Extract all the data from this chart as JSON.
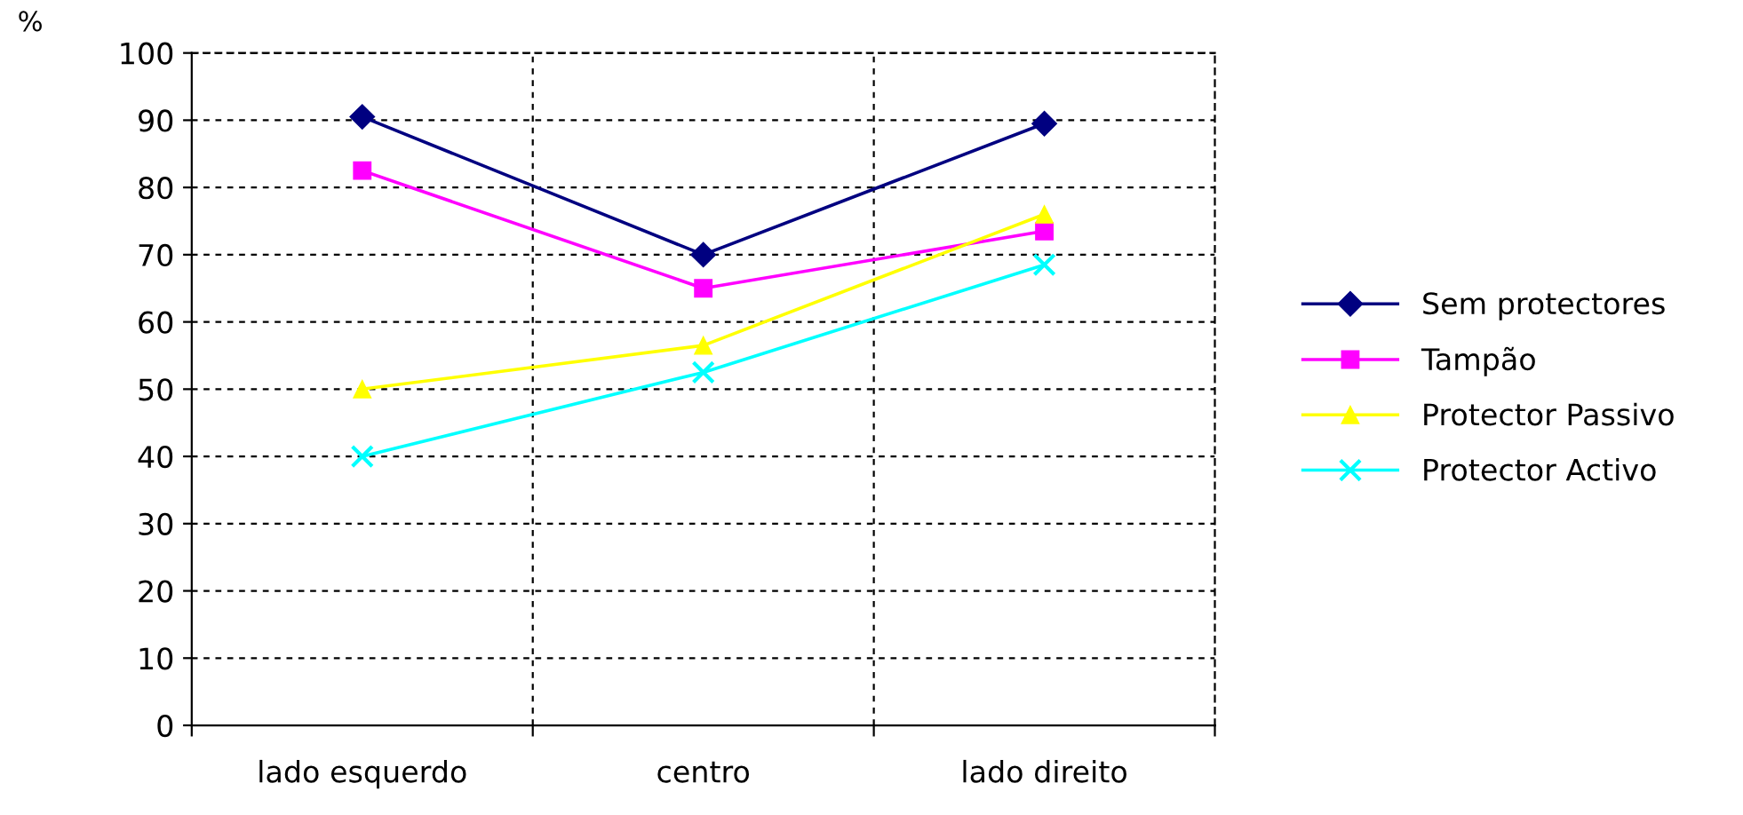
{
  "chart_data": {
    "type": "line",
    "ylabel": "%",
    "categories": [
      "lado esquerdo",
      "centro",
      "lado direito"
    ],
    "series": [
      {
        "name": "Sem protectores",
        "color": "#000080",
        "marker": "diamond",
        "values": [
          90.5,
          70,
          89.5
        ]
      },
      {
        "name": "Tampão",
        "color": "#ff00ff",
        "marker": "square",
        "values": [
          82.5,
          65,
          73.5
        ]
      },
      {
        "name": "Protector Passivo",
        "color": "#ffff00",
        "marker": "triangle",
        "values": [
          50,
          56.5,
          76
        ]
      },
      {
        "name": "Protector Activo",
        "color": "#00ffff",
        "marker": "cross",
        "values": [
          40,
          52.5,
          68.5
        ]
      }
    ],
    "ylim": [
      0,
      100
    ],
    "yticks": [
      0,
      10,
      20,
      30,
      40,
      50,
      60,
      70,
      80,
      90,
      100
    ],
    "grid": true,
    "line_style": "solid",
    "legend": "right"
  }
}
